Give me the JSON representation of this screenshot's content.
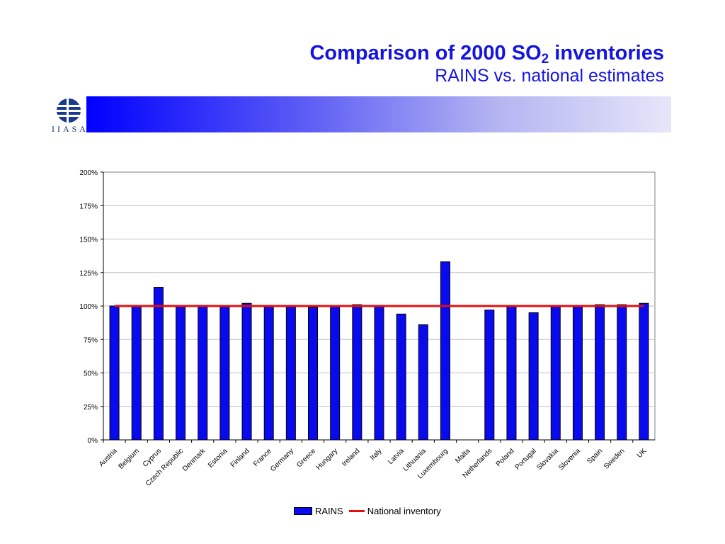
{
  "slide": {
    "title_main": "Comparison of 2000 SO",
    "title_sub_script": "2",
    "title_tail": " inventories",
    "subtitle": "RAINS vs. national estimates",
    "logo_text": [
      "I",
      "I",
      "A",
      "S",
      "A"
    ]
  },
  "colors": {
    "title": "#1414e0",
    "bar": "#0a0aee",
    "line": "#e01010"
  },
  "chart_data": {
    "type": "bar",
    "categories": [
      "Austria",
      "Belgium",
      "Cyprus",
      "Czech Republic",
      "Denmark",
      "Estonia",
      "Finland",
      "France",
      "Germany",
      "Greece",
      "Hungary",
      "Ireland",
      "Italy",
      "Latvia",
      "Lithuania",
      "Luxembourg",
      "Malta",
      "Netherlands",
      "Poland",
      "Portugal",
      "Slovakia",
      "Slovenia",
      "Spain",
      "Sweden",
      "UK"
    ],
    "series": [
      {
        "name": "RAINS",
        "type": "bar",
        "values": [
          100,
          100,
          114,
          100,
          100,
          100,
          102,
          100,
          100,
          99,
          100,
          101,
          100,
          94,
          86,
          133,
          null,
          97,
          100,
          95,
          100,
          100,
          101,
          101,
          102
        ]
      },
      {
        "name": "National inventory",
        "type": "line",
        "values": [
          100,
          100,
          100,
          100,
          100,
          100,
          100,
          100,
          100,
          100,
          100,
          100,
          100,
          100,
          100,
          100,
          100,
          100,
          100,
          100,
          100,
          100,
          100,
          100,
          100
        ]
      }
    ],
    "yticks": [
      "0%",
      "25%",
      "50%",
      "75%",
      "100%",
      "125%",
      "150%",
      "175%",
      "200%"
    ],
    "ylim": [
      0,
      200
    ],
    "grid": true,
    "legend_position": "bottom"
  },
  "legend": {
    "bar_label": "RAINS",
    "line_label": "National inventory"
  }
}
